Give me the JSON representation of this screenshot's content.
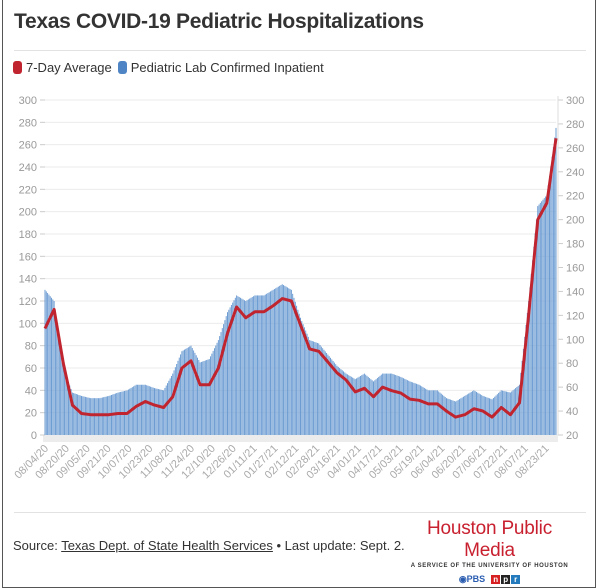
{
  "title": "Texas COVID-19 Pediatric Hospitalizations",
  "legend": {
    "avg_label": "7-Day Average",
    "bar_label": "Pediatric Lab Confirmed Inpatient"
  },
  "colors": {
    "avg": "#c0252f",
    "bar": "#6b9bd2",
    "brand": "#c8202f"
  },
  "footer": {
    "source_prefix": "Source: ",
    "source_link": "Texas Dept. of State Health Services",
    "source_suffix": " • Last update: Sept. 2.",
    "brand_name": "Houston Public Media",
    "brand_sub": "A SERVICE OF THE UNIVERSITY OF HOUSTON",
    "pbs": "PBS",
    "npr": [
      "n",
      "p",
      "r"
    ]
  },
  "chart_data": {
    "type": "bar+line",
    "start_date": "08/04/20",
    "x_step_days": 7,
    "x_tick_labels": [
      "08/04/20",
      "08/20/20",
      "09/05/20",
      "09/21/20",
      "10/07/20",
      "10/23/20",
      "11/08/20",
      "11/24/20",
      "12/10/20",
      "12/26/20",
      "01/11/21",
      "01/27/21",
      "02/12/21",
      "02/28/21",
      "03/16/21",
      "04/01/21",
      "04/17/21",
      "05/03/21",
      "05/19/21",
      "06/04/21",
      "06/20/21",
      "07/06/21",
      "07/22/21",
      "08/07/21",
      "08/23/21"
    ],
    "y_left": {
      "min": 0,
      "max": 300,
      "step": 20
    },
    "y_right": {
      "min": 20,
      "max": 300,
      "step": 20
    },
    "grid": true,
    "legend_position": "top-left",
    "series": [
      {
        "name": "Pediatric Lab Confirmed Inpatient",
        "type": "bar",
        "axis": "left",
        "values": [
          130,
          120,
          60,
          38,
          35,
          33,
          33,
          35,
          38,
          40,
          45,
          45,
          42,
          40,
          55,
          75,
          80,
          65,
          68,
          85,
          110,
          125,
          120,
          125,
          125,
          130,
          135,
          130,
          105,
          85,
          82,
          72,
          62,
          55,
          50,
          55,
          48,
          55,
          55,
          52,
          48,
          45,
          40,
          40,
          33,
          30,
          35,
          40,
          35,
          32,
          40,
          38,
          45,
          120,
          205,
          215,
          275
        ]
      },
      {
        "name": "7-Day Average",
        "type": "line",
        "axis": "right",
        "values": [
          109,
          125,
          80,
          45,
          38,
          37,
          37,
          37,
          38,
          38,
          44,
          48,
          45,
          43,
          52,
          76,
          82,
          62,
          62,
          76,
          105,
          127,
          118,
          123,
          123,
          128,
          134,
          132,
          112,
          92,
          90,
          81,
          72,
          66,
          56,
          59,
          52,
          60,
          57,
          55,
          50,
          49,
          46,
          46,
          40,
          35,
          37,
          42,
          40,
          35,
          43,
          37,
          47,
          120,
          200,
          214,
          268
        ]
      }
    ]
  }
}
